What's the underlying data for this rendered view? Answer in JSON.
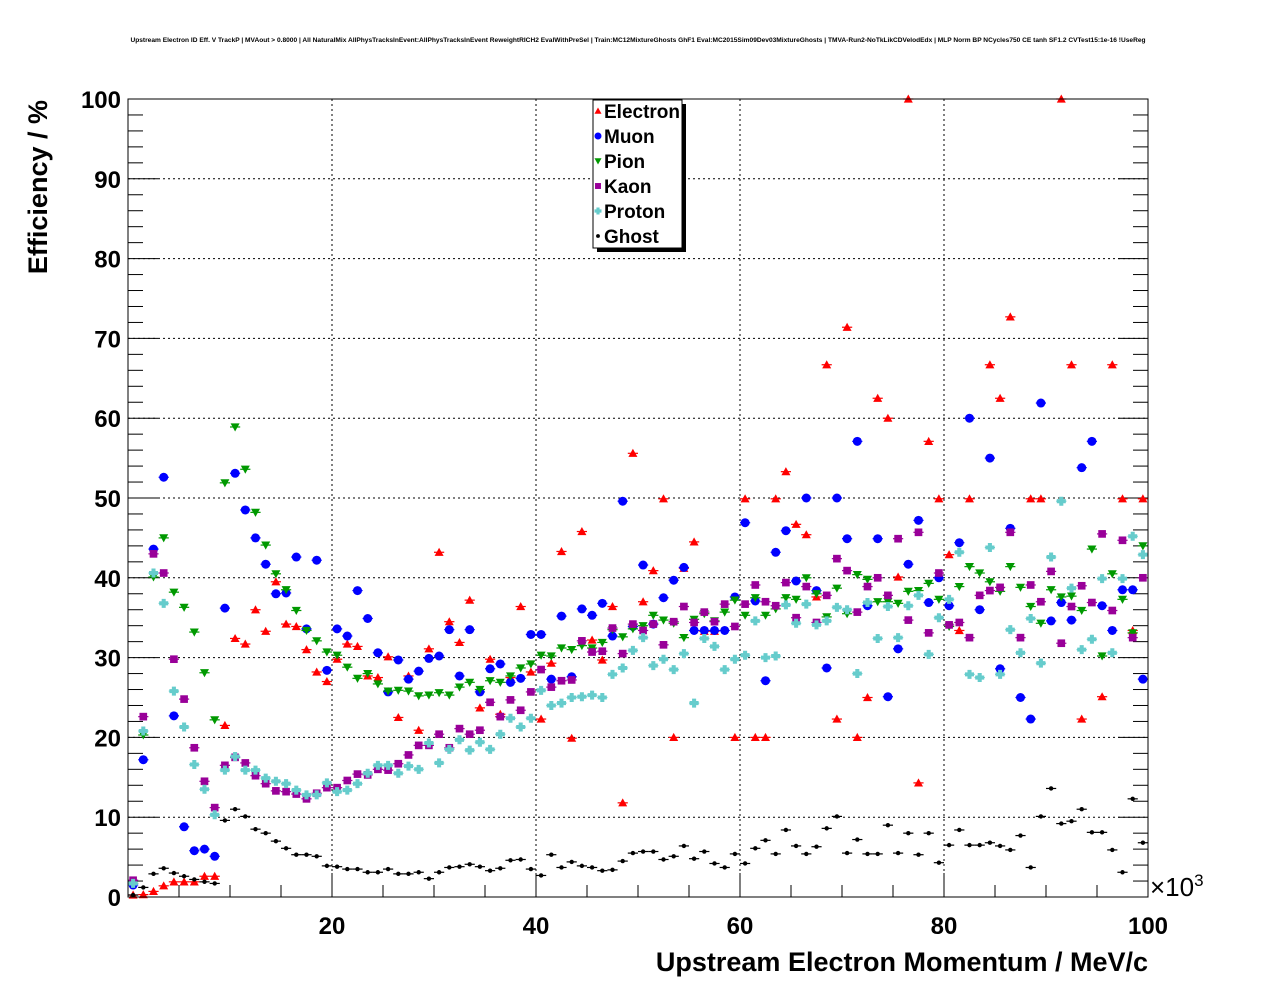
{
  "chart_data": {
    "type": "scatter",
    "title": "Upstream Electron ID Eff. V TrackP | MVAout > 0.8000 | All NaturalMix AllPhysTracksInEvent:AllPhysTracksInEvent ReweightRICH2 EvalWithPreSel | Train:MC12MixtureGhosts GhF1 Eval:MC2015Sim09Dev03MixtureGhosts | TMVA-Run2-NoTkLikCDVelodEdx | MLP Norm BP NCycles750 CE tanh SF1.2 CVTest15:1e-16 !UseReg",
    "xlabel": "Upstream Electron Momentum / MeV/c",
    "ylabel": "Efficiency / %",
    "x_multiplier": "×10",
    "x_multiplier_exp": "3",
    "xlim": [
      0,
      100
    ],
    "ylim": [
      0,
      100
    ],
    "x_ticks": [
      "20",
      "40",
      "60",
      "80",
      "100"
    ],
    "y_ticks": [
      "0",
      "10",
      "20",
      "30",
      "40",
      "50",
      "60",
      "70",
      "80",
      "90",
      "100"
    ],
    "bin_width": 1,
    "grid": true,
    "legend_position": "top-center",
    "series": [
      {
        "name": "Electron",
        "color": "#ff0000",
        "marker": "triangle-up",
        "values": [
          0.25,
          0.3,
          0.7,
          1.4,
          1.9,
          1.9,
          1.9,
          2.6,
          2.6,
          21.5,
          32.4,
          31.7,
          36,
          33.3,
          39.5,
          34.2,
          33.9,
          31,
          28.2,
          27,
          29.8,
          31.7,
          31.4,
          27.7,
          27.5,
          30.1,
          22.5,
          27.7,
          20.9,
          31.1,
          43.2,
          34.5,
          31.9,
          37.2,
          23.7,
          29.8,
          22.9,
          27.5,
          36.4,
          28.2,
          22.3,
          29.3,
          43.3,
          19.9,
          45.8,
          32.2,
          29.7,
          36.4,
          11.8,
          55.6,
          37,
          40.9,
          49.9,
          20,
          41.2,
          44.5,
          33.3,
          33.3,
          null,
          20,
          49.9,
          20,
          20,
          49.9,
          53.3,
          46.7,
          45.4,
          37.6,
          66.7,
          22.3,
          71.4,
          20,
          25,
          62.5,
          60,
          40.1,
          100,
          14.3,
          57.1,
          49.9,
          42.9,
          33.4,
          49.9,
          null,
          66.7,
          62.5,
          72.7,
          null,
          49.9,
          49.9,
          null,
          100,
          66.7,
          22.3,
          null,
          25.1,
          66.7,
          49.9,
          33.4,
          49.9
        ]
      },
      {
        "name": "Muon",
        "color": "#0000ff",
        "marker": "circle",
        "values": [
          1.5,
          17.2,
          43.6,
          52.6,
          22.7,
          8.8,
          5.8,
          6,
          5.1,
          36.2,
          53.1,
          48.5,
          45,
          41.7,
          38,
          38.1,
          42.6,
          33.6,
          42.2,
          28.4,
          33.6,
          32.7,
          38.4,
          34.9,
          30.6,
          25.7,
          29.7,
          27.3,
          28.3,
          29.9,
          30.2,
          33.5,
          27.7,
          33.5,
          25.7,
          28.6,
          29.2,
          26.9,
          27.4,
          32.9,
          32.9,
          27.3,
          35.2,
          27.6,
          36.1,
          35.3,
          36.8,
          32.7,
          49.6,
          33.9,
          41.6,
          34.2,
          37.5,
          39.7,
          41.3,
          33.4,
          33.4,
          33.4,
          33.4,
          37.6,
          46.9,
          37.1,
          27.1,
          43.2,
          45.9,
          39.6,
          50,
          38.4,
          28.7,
          50,
          44.9,
          57.1,
          36.5,
          44.9,
          25.1,
          31.1,
          41.7,
          47.2,
          36.9,
          40,
          36.5,
          44.4,
          60,
          36,
          55,
          28.6,
          46.2,
          25,
          22.3,
          61.9,
          34.6,
          36.9,
          34.7,
          53.8,
          57.1,
          36.5,
          33.4,
          38.5,
          38.5,
          27.3
        ]
      },
      {
        "name": "Pion",
        "color": "#009900",
        "marker": "triangle-down",
        "values": [
          1.7,
          20.3,
          40.1,
          45,
          38.2,
          36.3,
          33.2,
          28.1,
          22.2,
          51.9,
          58.9,
          53.6,
          48.2,
          44.1,
          40.5,
          38.5,
          35.9,
          33.4,
          32.1,
          30.7,
          30.3,
          28.8,
          27.4,
          28,
          26.7,
          25.8,
          25.9,
          25.8,
          25.2,
          25.3,
          25.6,
          25.3,
          26.3,
          26.9,
          26,
          27.1,
          26.9,
          27.7,
          28.7,
          29.2,
          30.3,
          30.2,
          31.2,
          31,
          31.5,
          31.2,
          31.9,
          33.5,
          32.6,
          33.6,
          34,
          35.3,
          34.7,
          34.3,
          32.5,
          34.8,
          35.5,
          34.6,
          35.7,
          37.2,
          35.3,
          37.5,
          35.3,
          36.1,
          37.5,
          37.3,
          40,
          38,
          35.1,
          38.7,
          35.5,
          40.4,
          39.8,
          37,
          37,
          36.8,
          38.3,
          38.4,
          39.3,
          37.3,
          33.9,
          38.9,
          41.4,
          40.6,
          39.5,
          38.3,
          41.4,
          38.8,
          36.4,
          34.3,
          38.5,
          37.6,
          37.7,
          35.9,
          43.6,
          30.2,
          40.5,
          37.3,
          33.1,
          44
        ]
      },
      {
        "name": "Kaon",
        "color": "#990099",
        "marker": "square",
        "values": [
          2.1,
          22.6,
          43,
          40.6,
          29.8,
          24.8,
          18.7,
          14.5,
          11.2,
          16.5,
          17.5,
          16.8,
          15.2,
          14.2,
          13.3,
          13.2,
          12.9,
          12.3,
          13,
          13.7,
          13.7,
          14.6,
          15.4,
          15.3,
          16,
          15.9,
          16.7,
          17.8,
          19,
          19,
          20.4,
          18.7,
          21.1,
          20.4,
          20.9,
          24.4,
          22.6,
          24.7,
          23.4,
          25.7,
          28.5,
          26.3,
          27.1,
          27.2,
          32.1,
          30.7,
          30.8,
          33.7,
          30.5,
          34.2,
          33.4,
          34.2,
          31.6,
          34.5,
          36.4,
          34.4,
          35.7,
          34.5,
          36.7,
          33.9,
          36.7,
          39.1,
          37,
          36.5,
          39.4,
          35,
          38.9,
          34.4,
          37.8,
          42.4,
          40.9,
          35.7,
          38.9,
          40,
          37.8,
          44.9,
          34.7,
          45.7,
          33.1,
          40.6,
          34.1,
          34.4,
          32.5,
          37.8,
          38.4,
          38.8,
          45.7,
          32.5,
          39.1,
          37,
          40.8,
          31.8,
          36.4,
          39,
          36.9,
          45.5,
          35.9,
          44.7,
          32.5,
          40
        ]
      },
      {
        "name": "Proton",
        "color": "#66cccc",
        "marker": "cross",
        "values": [
          1.7,
          20.8,
          40.6,
          36.8,
          25.8,
          21.3,
          16.6,
          13.5,
          10.3,
          15.9,
          17.6,
          15.9,
          15.9,
          14.9,
          14.5,
          14.2,
          13.4,
          12.8,
          12.8,
          14.3,
          13.2,
          13.4,
          14.2,
          15.5,
          16.5,
          16.5,
          15.5,
          16.4,
          16,
          19.3,
          16.8,
          18.5,
          19.7,
          18.4,
          19.4,
          18.5,
          20.4,
          22.4,
          21.3,
          22.4,
          25.9,
          24,
          24.3,
          25,
          25.1,
          25.3,
          25,
          27.9,
          28.7,
          30.9,
          32.5,
          29,
          29.8,
          28.5,
          30.5,
          24.3,
          32.4,
          31.4,
          28.5,
          29.8,
          30.3,
          34.6,
          30,
          30.2,
          36.6,
          34.3,
          36.7,
          34.1,
          34.6,
          36.3,
          36,
          28,
          36.9,
          32.4,
          36.4,
          32.5,
          36.5,
          37.8,
          30.4,
          35,
          37.3,
          43.2,
          27.9,
          27.5,
          43.8,
          27.9,
          33.5,
          30.6,
          34.9,
          29.3,
          42.6,
          49.6,
          38.7,
          31,
          32.3,
          39.9,
          30.6,
          39.9,
          45.2,
          42.9
        ]
      },
      {
        "name": "Ghost",
        "color": "#000000",
        "marker": "dot",
        "values": [
          0.25,
          1.2,
          2.9,
          3.6,
          3,
          2.6,
          2.2,
          1.9,
          1.7,
          9.6,
          11,
          10.1,
          8.5,
          8,
          7,
          6.1,
          5.3,
          5.3,
          5.1,
          3.9,
          3.8,
          3.5,
          3.5,
          3.1,
          3.1,
          3.5,
          2.9,
          2.9,
          3.1,
          2.3,
          3.1,
          3.7,
          3.8,
          4.1,
          3.8,
          3.3,
          3.6,
          4.6,
          4.7,
          3.5,
          2.7,
          5.3,
          3.7,
          4.4,
          3.9,
          3.7,
          3.3,
          3.4,
          4.5,
          5.5,
          5.7,
          5.7,
          4.7,
          5.1,
          6.4,
          4.8,
          5.7,
          4.2,
          3.7,
          5.4,
          4.2,
          6.1,
          7.1,
          5.4,
          8.4,
          6.4,
          5.4,
          6.3,
          8.6,
          10.1,
          5.5,
          7.2,
          5.4,
          5.4,
          9,
          5.5,
          8,
          5.3,
          8,
          4.3,
          6.5,
          8.4,
          6.5,
          6.5,
          6.8,
          6.4,
          5.9,
          7.7,
          3.7,
          10.1,
          13.6,
          9.2,
          9.5,
          11,
          8.1,
          8.1,
          5.9,
          3.1,
          12.3,
          6.8
        ]
      }
    ]
  }
}
